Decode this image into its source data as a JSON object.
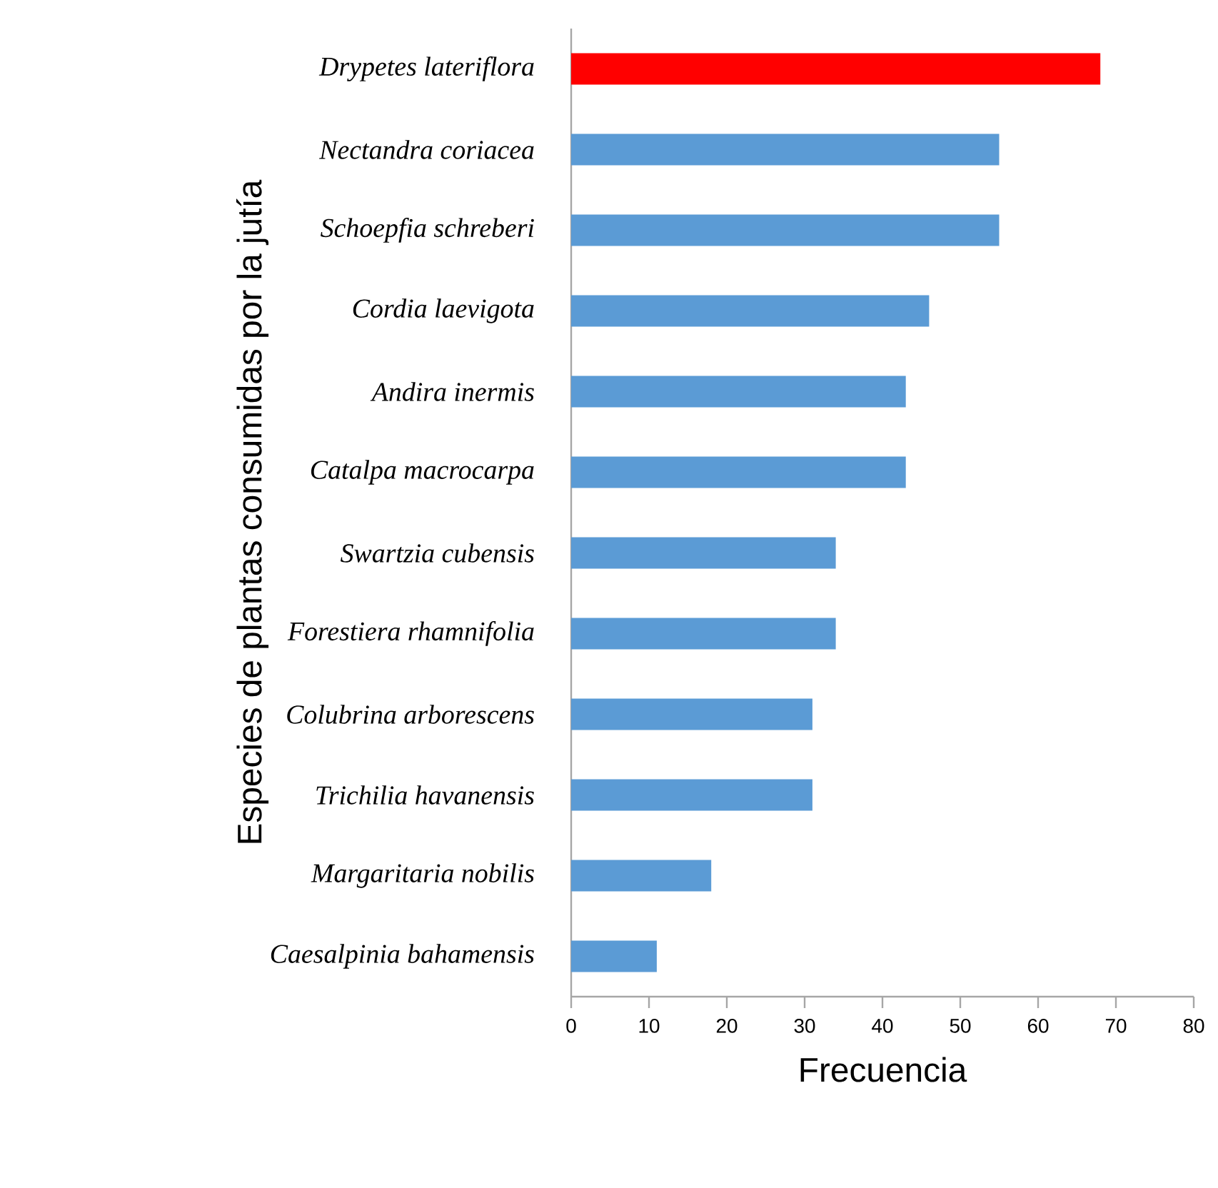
{
  "chart_data": {
    "type": "bar",
    "orientation": "horizontal",
    "xlabel": "Frecuencia",
    "ylabel": "Especies de plantas consumidas por la jutía",
    "categories": [
      "*Drypetes lateriflora*",
      "*Nectandra coriacea*",
      "*Schoepfia schreberi*",
      "*Cordia laevigota*",
      "*Andira inermis*",
      "*Catalpa macrocarpa*",
      "*Swartzia cubensis*",
      "*Forestiera rhamnifolia*",
      "*Colubrina arborescens*",
      "*Trichilia havanensis*",
      "*Margaritaria nobilis*",
      "*Caesalpinia bahamensis*"
    ],
    "values": [
      68,
      55,
      55,
      46,
      43,
      43,
      34,
      34,
      31,
      31,
      18,
      11
    ],
    "colors": [
      "#ff0000",
      "#5b9bd5",
      "#5b9bd5",
      "#5b9bd5",
      "#5b9bd5",
      "#5b9bd5",
      "#5b9bd5",
      "#5b9bd5",
      "#5b9bd5",
      "#5b9bd5",
      "#5b9bd5",
      "#5b9bd5"
    ],
    "xlim": [
      0,
      80
    ],
    "xticks": [
      0,
      10,
      20,
      30,
      40,
      50,
      60,
      70,
      80
    ],
    "grid": false
  }
}
